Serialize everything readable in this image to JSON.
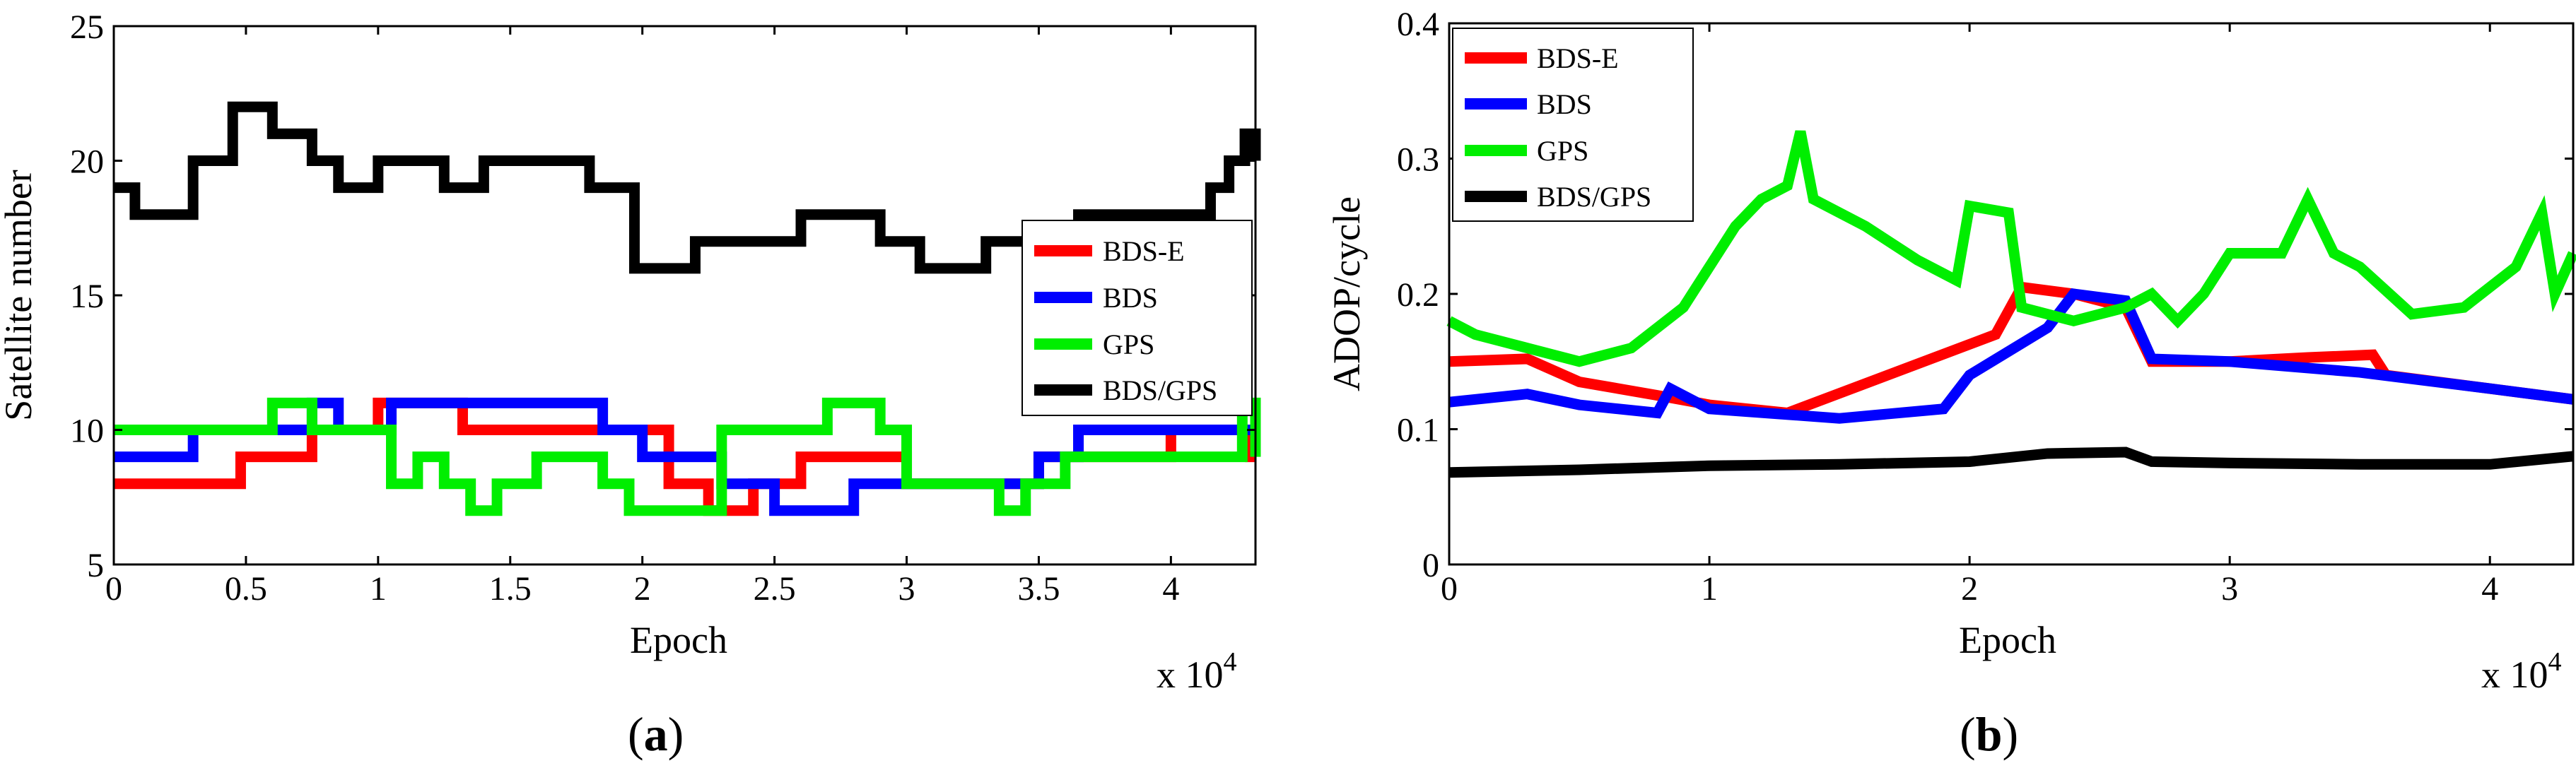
{
  "chart_data": [
    {
      "type": "line",
      "panel_label": "a",
      "ylabel": "Satellite number",
      "xlabel": "Epoch",
      "x_multiplier": "x 10",
      "x_exponent": "4",
      "xlim": [
        0,
        4.32
      ],
      "ylim": [
        5,
        25
      ],
      "xticks": [
        0,
        0.5,
        1,
        1.5,
        2,
        2.5,
        3,
        3.5,
        4
      ],
      "xtick_labels": [
        "0",
        "0.5",
        "1",
        "1.5",
        "2",
        "2.5",
        "3",
        "3.5",
        "4"
      ],
      "yticks": [
        5,
        10,
        15,
        20,
        25
      ],
      "ytick_labels": [
        "5",
        "10",
        "15",
        "20",
        "25"
      ],
      "legend": [
        "BDS-E",
        "BDS",
        "GPS",
        "BDS/GPS"
      ],
      "series": [
        {
          "name": "BDS-E",
          "color": "#ff0000",
          "step": true,
          "x": [
            0,
            0.48,
            0.75,
            1.0,
            1.32,
            1.48,
            2.1,
            2.25,
            2.42,
            2.6,
            3.0,
            3.5,
            4.0,
            4.1,
            4.25,
            4.3,
            4.32
          ],
          "y": [
            8,
            9,
            10,
            11,
            10,
            10,
            8,
            7,
            8,
            9,
            8,
            9,
            10,
            10,
            10,
            9,
            9
          ]
        },
        {
          "name": "BDS",
          "color": "#0000ff",
          "step": true,
          "x": [
            0,
            0.3,
            0.75,
            0.85,
            1.05,
            1.85,
            2.0,
            2.3,
            2.5,
            2.8,
            3.2,
            3.5,
            3.65,
            4.0,
            4.2,
            4.32
          ],
          "y": [
            9,
            10,
            11,
            10,
            11,
            10,
            9,
            8,
            7,
            8,
            8,
            9,
            10,
            10,
            10,
            10
          ]
        },
        {
          "name": "GPS",
          "color": "#00ee00",
          "step": true,
          "x": [
            0,
            0.35,
            0.6,
            0.75,
            0.9,
            1.05,
            1.15,
            1.25,
            1.35,
            1.45,
            1.6,
            1.85,
            1.95,
            2.2,
            2.3,
            2.6,
            2.7,
            2.9,
            3.0,
            3.2,
            3.35,
            3.45,
            3.6,
            3.75,
            4.0,
            4.2,
            4.27,
            4.32
          ],
          "y": [
            10,
            10,
            11,
            10,
            10,
            8,
            9,
            8,
            7,
            8,
            9,
            8,
            7,
            7,
            10,
            10,
            11,
            10,
            8,
            8,
            7,
            8,
            9,
            9,
            9,
            9,
            11,
            9
          ]
        },
        {
          "name": "BDS/GPS",
          "color": "#000000",
          "step": true,
          "x": [
            0,
            0.08,
            0.3,
            0.45,
            0.6,
            0.75,
            0.85,
            1.0,
            1.25,
            1.4,
            1.8,
            1.97,
            2.2,
            2.4,
            2.6,
            2.75,
            2.9,
            3.05,
            3.3,
            3.55,
            3.65,
            3.85,
            4.15,
            4.22,
            4.28,
            4.32
          ],
          "y": [
            19,
            18,
            20,
            22,
            21,
            20,
            19,
            20,
            19,
            20,
            19,
            16,
            17,
            17,
            18,
            18,
            17,
            16,
            17,
            17,
            18,
            18,
            19,
            20,
            21,
            20
          ]
        }
      ]
    },
    {
      "type": "line",
      "panel_label": "b",
      "ylabel": "ADOP/cycle",
      "xlabel": "Epoch",
      "x_multiplier": "x 10",
      "x_exponent": "4",
      "xlim": [
        0,
        4.32
      ],
      "ylim": [
        0,
        0.4
      ],
      "xticks": [
        0,
        1,
        2,
        3,
        4
      ],
      "xtick_labels": [
        "0",
        "1",
        "2",
        "3",
        "4"
      ],
      "yticks": [
        0,
        0.1,
        0.2,
        0.3,
        0.4
      ],
      "ytick_labels": [
        "0",
        "0.1",
        "0.2",
        "0.3",
        "0.4"
      ],
      "legend": [
        "BDS-E",
        "BDS",
        "GPS",
        "BDS/GPS"
      ],
      "series": [
        {
          "name": "BDS-E",
          "color": "#ff0000",
          "step": false,
          "x": [
            0,
            0.3,
            0.5,
            0.8,
            1.0,
            1.3,
            2.1,
            2.2,
            2.4,
            2.6,
            2.7,
            3.0,
            3.3,
            3.55,
            3.6,
            4.0,
            4.32
          ],
          "y": [
            0.15,
            0.152,
            0.135,
            0.125,
            0.118,
            0.112,
            0.17,
            0.205,
            0.2,
            0.19,
            0.15,
            0.15,
            0.153,
            0.155,
            0.14,
            0.13,
            0.122
          ]
        },
        {
          "name": "BDS",
          "color": "#0000ff",
          "step": false,
          "x": [
            0,
            0.3,
            0.5,
            0.8,
            0.85,
            1.0,
            1.5,
            1.9,
            2.0,
            2.3,
            2.4,
            2.6,
            2.7,
            3.0,
            3.5,
            4.0,
            4.32
          ],
          "y": [
            0.12,
            0.126,
            0.118,
            0.112,
            0.13,
            0.115,
            0.108,
            0.115,
            0.14,
            0.175,
            0.2,
            0.195,
            0.152,
            0.15,
            0.142,
            0.13,
            0.122
          ]
        },
        {
          "name": "GPS",
          "color": "#00ee00",
          "step": false,
          "x": [
            0,
            0.1,
            0.3,
            0.5,
            0.7,
            0.9,
            1.0,
            1.1,
            1.2,
            1.3,
            1.35,
            1.4,
            1.6,
            1.8,
            1.95,
            2.0,
            2.15,
            2.2,
            2.4,
            2.6,
            2.7,
            2.8,
            2.9,
            3.0,
            3.2,
            3.3,
            3.4,
            3.5,
            3.7,
            3.9,
            4.1,
            4.2,
            4.25,
            4.32
          ],
          "y": [
            0.18,
            0.17,
            0.16,
            0.15,
            0.16,
            0.19,
            0.22,
            0.25,
            0.27,
            0.28,
            0.32,
            0.27,
            0.25,
            0.225,
            0.21,
            0.265,
            0.26,
            0.19,
            0.18,
            0.19,
            0.2,
            0.18,
            0.2,
            0.23,
            0.23,
            0.27,
            0.23,
            0.22,
            0.185,
            0.19,
            0.22,
            0.26,
            0.2,
            0.23
          ]
        },
        {
          "name": "BDS/GPS",
          "color": "#000000",
          "step": false,
          "x": [
            0,
            0.5,
            1.0,
            1.5,
            2.0,
            2.3,
            2.6,
            2.7,
            3.0,
            3.5,
            4.0,
            4.32
          ],
          "y": [
            0.068,
            0.07,
            0.073,
            0.074,
            0.076,
            0.082,
            0.083,
            0.076,
            0.075,
            0.074,
            0.074,
            0.08
          ]
        }
      ]
    }
  ]
}
